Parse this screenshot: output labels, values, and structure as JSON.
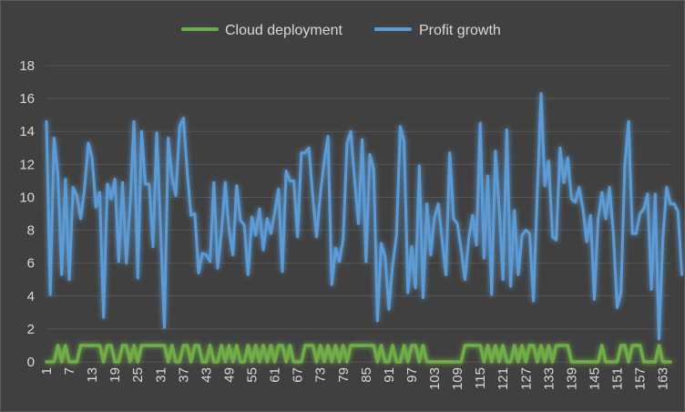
{
  "chart_data": {
    "type": "line",
    "title": "",
    "xlabel": "",
    "ylabel": "",
    "ylim": [
      0,
      18
    ],
    "yticks": [
      0,
      2,
      4,
      6,
      8,
      10,
      12,
      14,
      16,
      18
    ],
    "x_start": 1,
    "x_end": 165,
    "x_tick_labels": [
      "1",
      "7",
      "13",
      "19",
      "25",
      "31",
      "37",
      "43",
      "49",
      "55",
      "61",
      "67",
      "73",
      "79",
      "85",
      "91",
      "97",
      "103",
      "109",
      "115",
      "121",
      "127",
      "133",
      "139",
      "145",
      "151",
      "157",
      "163"
    ],
    "grid": true,
    "legend_position": "top",
    "series": [
      {
        "name": "Cloud deployment",
        "color": "#70ad47",
        "values": [
          0,
          0,
          0,
          1,
          0,
          1,
          0,
          0,
          0,
          1,
          1,
          1,
          1,
          1,
          1,
          0,
          1,
          1,
          0,
          0,
          1,
          1,
          0,
          1,
          0,
          1,
          1,
          1,
          1,
          1,
          1,
          1,
          0,
          1,
          0,
          0,
          1,
          1,
          0,
          1,
          1,
          0,
          0,
          1,
          0,
          0,
          1,
          0,
          1,
          0,
          1,
          0,
          0,
          1,
          0,
          1,
          0,
          1,
          0,
          1,
          0,
          1,
          1,
          0,
          1,
          0,
          0,
          0,
          1,
          1,
          1,
          0,
          1,
          0,
          1,
          0,
          1,
          0,
          1,
          0,
          1,
          1,
          1,
          1,
          1,
          1,
          1,
          0,
          1,
          0,
          0,
          1,
          0,
          0,
          1,
          0,
          1,
          1,
          0,
          1,
          0,
          0,
          0,
          0,
          0,
          0,
          0,
          0,
          0,
          0,
          1,
          1,
          1,
          1,
          1,
          0,
          1,
          0,
          1,
          0,
          1,
          0,
          0,
          1,
          0,
          1,
          0,
          1,
          1,
          0,
          1,
          0,
          1,
          0,
          1,
          1,
          1,
          1,
          0,
          0,
          0,
          0,
          0,
          0,
          0,
          0,
          1,
          0,
          0,
          0,
          0,
          1,
          1,
          0,
          1,
          1,
          1,
          0,
          0,
          0,
          0,
          1,
          0,
          0,
          0
        ]
      },
      {
        "name": "Profit growth",
        "color": "#5b9bd5",
        "values": [
          14.6,
          4.1,
          13.6,
          11.4,
          5.3,
          11.1,
          5.0,
          10.6,
          10.1,
          8.7,
          10.5,
          13.3,
          12.4,
          9.4,
          10.3,
          2.7,
          10.8,
          9.9,
          11.1,
          6.1,
          10.9,
          6.0,
          9.6,
          14.6,
          5.1,
          14.0,
          10.8,
          10.8,
          7.0,
          13.9,
          8.0,
          2.1,
          13.6,
          11.2,
          10.1,
          14.3,
          14.8,
          11.5,
          8.9,
          9.0,
          5.4,
          6.6,
          6.5,
          6.1,
          10.9,
          5.7,
          7.9,
          10.9,
          8.0,
          6.5,
          10.7,
          8.6,
          8.3,
          5.3,
          8.8,
          7.7,
          9.3,
          6.8,
          8.7,
          7.8,
          9.1,
          10.5,
          5.5,
          11.6,
          11.0,
          11.0,
          7.6,
          12.7,
          12.7,
          13.0,
          10.0,
          7.6,
          10.2,
          12.2,
          13.7,
          4.7,
          6.9,
          6.1,
          7.5,
          13.3,
          14.0,
          11.0,
          8.4,
          13.5,
          6.1,
          12.6,
          11.7,
          2.5,
          7.2,
          6.4,
          3.2,
          5.9,
          7.7,
          14.3,
          13.4,
          4.2,
          7.0,
          4.5,
          11.9,
          3.9,
          9.6,
          6.5,
          8.8,
          9.6,
          7.4,
          5.3,
          12.7,
          8.7,
          8.4,
          6.8,
          5.0,
          7.5,
          8.9,
          7.1,
          14.5,
          6.3,
          11.3,
          4.1,
          12.8,
          9.3,
          5.0,
          14.1,
          4.6,
          9.2,
          5.3,
          7.7,
          8.0,
          7.8,
          3.7,
          10.2,
          16.3,
          10.7,
          12.2,
          7.6,
          7.4,
          13.0,
          10.9,
          12.4,
          9.9,
          9.7,
          10.6,
          9.3,
          7.3,
          8.9,
          3.8,
          8.7,
          10.3,
          8.7,
          10.6,
          7.8,
          3.3,
          4.2,
          11.9,
          14.6,
          7.8,
          7.8,
          9.0,
          9.3,
          10.2,
          4.4,
          10.2,
          1.4,
          7.5,
          10.6,
          9.6,
          9.6,
          9.1,
          5.3
        ]
      }
    ]
  }
}
